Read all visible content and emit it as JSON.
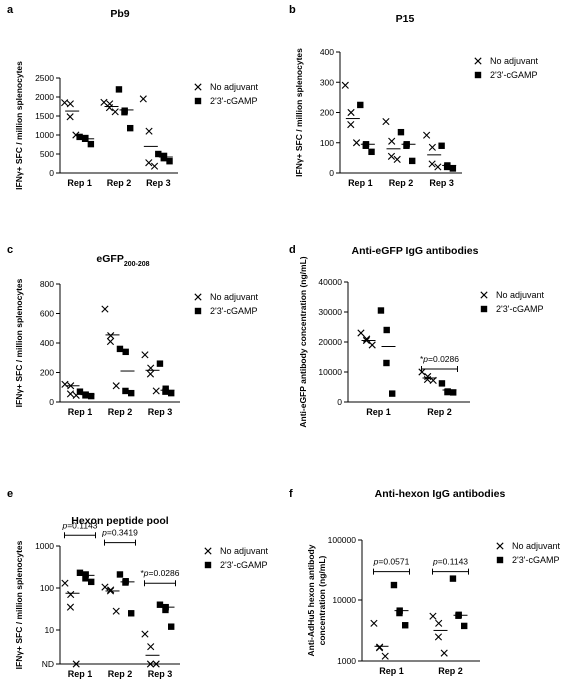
{
  "figure": {
    "panel_labels": [
      "a",
      "b",
      "c",
      "d",
      "e",
      "f"
    ],
    "legend": {
      "cross_label": "No adjuvant",
      "square_label": "2'3'-cGAMP"
    }
  },
  "chart_data": [
    {
      "panel": "a",
      "type": "scatter",
      "title": "Pb9",
      "ylabel": "IFNγ+ SFC / million splenocytes",
      "xlabel": "",
      "categories": [
        "Rep 1",
        "Rep 2",
        "Rep 3"
      ],
      "yscale": "linear",
      "ylim": [
        0,
        2500
      ],
      "yticks": [
        0,
        500,
        1000,
        1500,
        2000,
        2500
      ],
      "legend_position": "right",
      "series": [
        {
          "name": "No adjuvant",
          "marker": "cross",
          "values": [
            [
              1850,
              1820,
              1480,
              1000
            ],
            [
              1860,
              1820,
              1720,
              1610
            ],
            [
              1950,
              1100,
              270,
              180
            ]
          ],
          "means": [
            1630,
            1750,
            700
          ]
        },
        {
          "name": "2'3'-cGAMP",
          "marker": "square",
          "values": [
            [
              950,
              920,
              900,
              760
            ],
            [
              2200,
              1640,
              1600,
              1180
            ],
            [
              500,
              450,
              390,
              310
            ]
          ],
          "means": [
            900,
            1660,
            420
          ]
        }
      ],
      "annotations": []
    },
    {
      "panel": "b",
      "type": "scatter",
      "title": "P15",
      "ylabel": "IFNγ+ SFC / million splenocytes",
      "xlabel": "",
      "categories": [
        "Rep 1",
        "Rep 2",
        "Rep 3"
      ],
      "yscale": "linear",
      "ylim": [
        0,
        400
      ],
      "yticks": [
        0,
        100,
        200,
        300,
        400
      ],
      "legend_position": "right",
      "series": [
        {
          "name": "No adjuvant",
          "marker": "cross",
          "values": [
            [
              290,
              200,
              160,
              100
            ],
            [
              170,
              105,
              55,
              45
            ],
            [
              125,
              85,
              30,
              20
            ]
          ],
          "means": [
            180,
            80,
            60
          ]
        },
        {
          "name": "2'3'-cGAMP",
          "marker": "square",
          "values": [
            [
              225,
              95,
              90,
              70
            ],
            [
              135,
              95,
              90,
              40
            ],
            [
              90,
              25,
              20,
              15
            ]
          ],
          "means": [
            95,
            95,
            25
          ]
        }
      ],
      "annotations": []
    },
    {
      "panel": "c",
      "type": "scatter",
      "title": "eGFP",
      "title_subscript": "200-208",
      "ylabel": "IFNγ+ SFC / million splenocytes",
      "xlabel": "",
      "categories": [
        "Rep 1",
        "Rep 2",
        "Rep 3"
      ],
      "yscale": "linear",
      "ylim": [
        0,
        800
      ],
      "yticks": [
        0,
        200,
        400,
        600,
        800
      ],
      "legend_position": "right",
      "series": [
        {
          "name": "No adjuvant",
          "marker": "cross",
          "values": [
            [
              120,
              110,
              55,
              45
            ],
            [
              630,
              450,
              410,
              110
            ],
            [
              320,
              230,
              190,
              75
            ]
          ],
          "means": [
            110,
            455,
            215
          ]
        },
        {
          "name": "2'3'-cGAMP",
          "marker": "square",
          "values": [
            [
              70,
              50,
              45,
              40
            ],
            [
              360,
              340,
              75,
              60
            ],
            [
              260,
              90,
              70,
              60
            ]
          ],
          "means": [
            50,
            210,
            80
          ]
        }
      ],
      "annotations": []
    },
    {
      "panel": "d",
      "type": "scatter",
      "title": "Anti-eGFP IgG antibodies",
      "ylabel": "Anti-eGFP antibody concentration (ng/mL)",
      "xlabel": "",
      "categories": [
        "Rep 1",
        "Rep 2"
      ],
      "yscale": "linear",
      "ylim": [
        0,
        40000
      ],
      "yticks": [
        0,
        10000,
        20000,
        30000,
        40000
      ],
      "legend_position": "right",
      "series": [
        {
          "name": "No adjuvant",
          "marker": "cross",
          "values": [
            [
              23000,
              21000,
              20500,
              19000
            ],
            [
              10000,
              8500,
              7500,
              7200
            ]
          ],
          "means": [
            20500,
            8000
          ]
        },
        {
          "name": "2'3'-cGAMP",
          "marker": "square",
          "values": [
            [
              30500,
              24000,
              13000,
              2800
            ],
            [
              6200,
              3500,
              3300,
              3200
            ]
          ],
          "means": [
            18500,
            4000
          ]
        }
      ],
      "annotations": [
        {
          "text": "*p=0.0286",
          "between": "Rep 2",
          "level": 11000
        }
      ]
    },
    {
      "panel": "e",
      "type": "scatter",
      "title": "Hexon peptide pool",
      "ylabel": "IFNγ+ SFC / million splenocytes",
      "xlabel": "",
      "categories": [
        "Rep 1",
        "Rep 2",
        "Rep 3"
      ],
      "yscale": "log",
      "ytick_labels": [
        "ND",
        "10",
        "100",
        "1000"
      ],
      "legend_position": "right",
      "series": [
        {
          "name": "No adjuvant",
          "marker": "cross",
          "values": [
            [
              130,
              70,
              35,
              "ND"
            ],
            [
              105,
              90,
              85,
              28
            ],
            [
              8,
              4,
              "ND",
              "ND"
            ]
          ],
          "means": [
            75,
            85,
            2.5
          ]
        },
        {
          "name": "2'3'-cGAMP",
          "marker": "square",
          "values": [
            [
              230,
              210,
              170,
              140
            ],
            [
              210,
              145,
              135,
              25
            ],
            [
              40,
              35,
              30,
              12
            ]
          ],
          "means": [
            200,
            140,
            35
          ]
        }
      ],
      "annotations": [
        {
          "text": "p=0.1143",
          "between": "Rep 1",
          "level": 1800
        },
        {
          "text": "p=0.3419",
          "between": "Rep 2",
          "level": 1200
        },
        {
          "text": "*p=0.0286",
          "between": "Rep 3",
          "level": 130
        }
      ]
    },
    {
      "panel": "f",
      "type": "scatter",
      "title": "Anti-hexon IgG antibodies",
      "ylabel": "Anti-AdHu5 hexon antibody concentration (ng/mL)",
      "xlabel": "",
      "categories": [
        "Rep 1",
        "Rep 2"
      ],
      "yscale": "log",
      "ytick_labels": [
        "1000",
        "10000",
        "100000"
      ],
      "legend_position": "right",
      "series": [
        {
          "name": "No adjuvant",
          "marker": "cross",
          "values": [
            [
              4200,
              1700,
              1650,
              1200
            ],
            [
              5500,
              4200,
              2500,
              1350
            ]
          ],
          "means": [
            1750,
            3200
          ]
        },
        {
          "name": "2'3'-cGAMP",
          "marker": "square",
          "values": [
            [
              18000,
              6800,
              6200,
              3900
            ],
            [
              23000,
              5800,
              5600,
              3800
            ]
          ],
          "means": [
            6800,
            5700
          ]
        }
      ],
      "annotations": [
        {
          "text": "p=0.0571",
          "between": "Rep 1",
          "level": 30000
        },
        {
          "text": "p=0.1143",
          "between": "Rep 2",
          "level": 30000
        }
      ]
    }
  ]
}
